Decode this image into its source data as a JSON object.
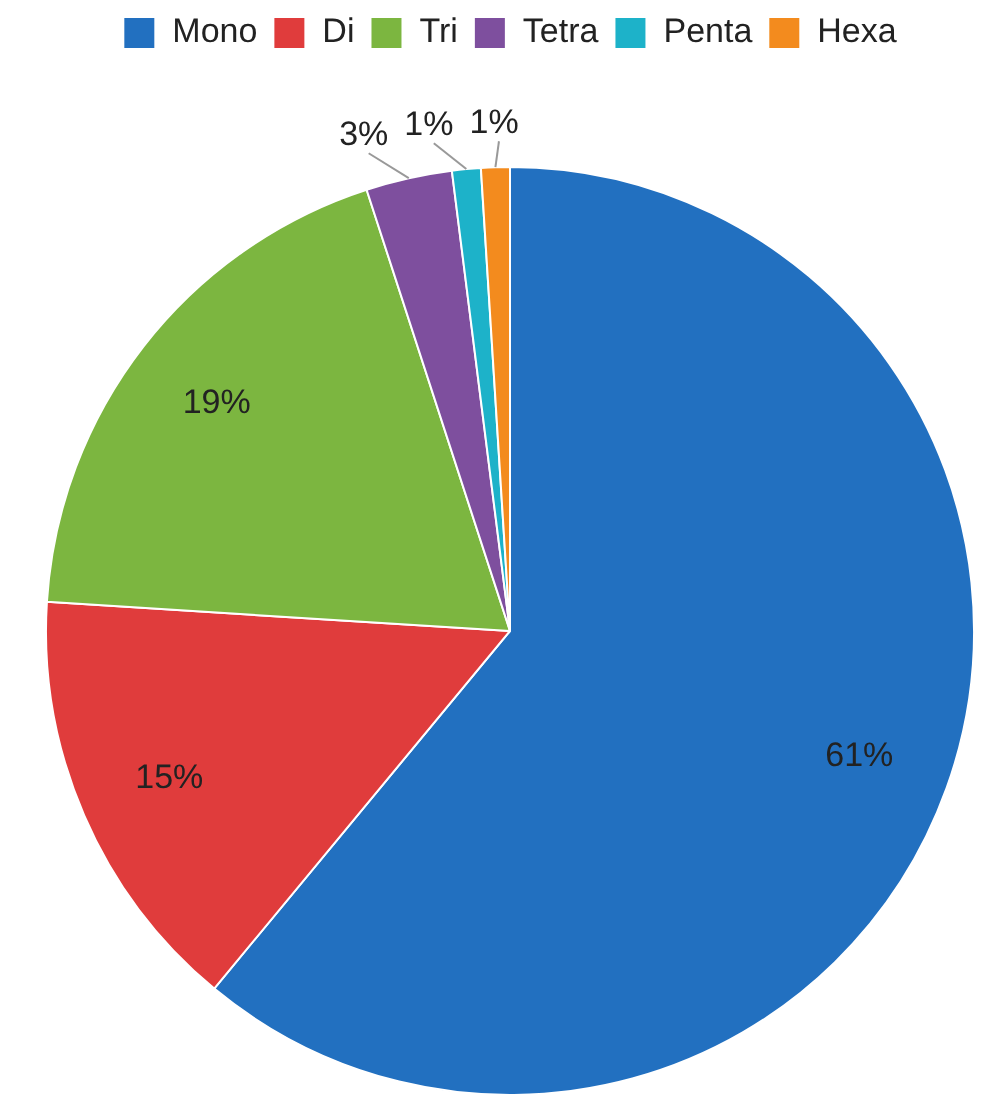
{
  "chart_data": {
    "type": "pie",
    "categories": [
      "Mono",
      "Di",
      "Tri",
      "Tetra",
      "Penta",
      "Hexa"
    ],
    "values": [
      61,
      15,
      19,
      3,
      1,
      1
    ],
    "value_labels": [
      "61%",
      "15%",
      "19%",
      "3%",
      "1%",
      "1%"
    ],
    "colors": [
      "#2270c0",
      "#e03c3c",
      "#7cb640",
      "#7e4f9e",
      "#1db2c9",
      "#f38b1e"
    ],
    "legend": "top"
  }
}
